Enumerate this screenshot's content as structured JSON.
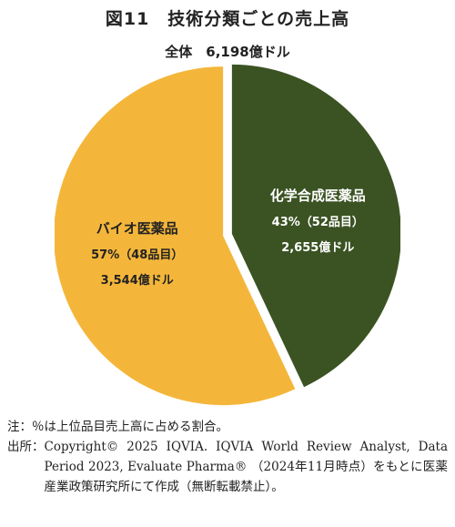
{
  "figure": {
    "title": "図11　技術分類ごとの売上高",
    "total": "全体　6,198億ドル"
  },
  "chart_data": {
    "type": "pie",
    "slices": [
      {
        "name": "化学合成医薬品",
        "percent": 43,
        "pct_label": "43%（52品目）",
        "value": 2655,
        "value_label": "2,655億ドル",
        "color": "#3b5323",
        "text_color": "#ffffff"
      },
      {
        "name": "バイオ医薬品",
        "percent": 57,
        "pct_label": "57%（48品目）",
        "value": 3544,
        "value_label": "3,544億ドル",
        "color": "#f4b63a",
        "text_color": "#222222"
      }
    ]
  },
  "notes": {
    "note_key": "注：",
    "note_text": "％は上位品目売上高に占める割合。",
    "source_key": "出所：",
    "source_text": "Copyright© 2025 IQVIA. IQVIA World Review Analyst, Data Period 2023, Evaluate Pharma® （2024年11月時点）をもとに医薬産業政策研究所にて作成（無断転載禁止）。"
  }
}
